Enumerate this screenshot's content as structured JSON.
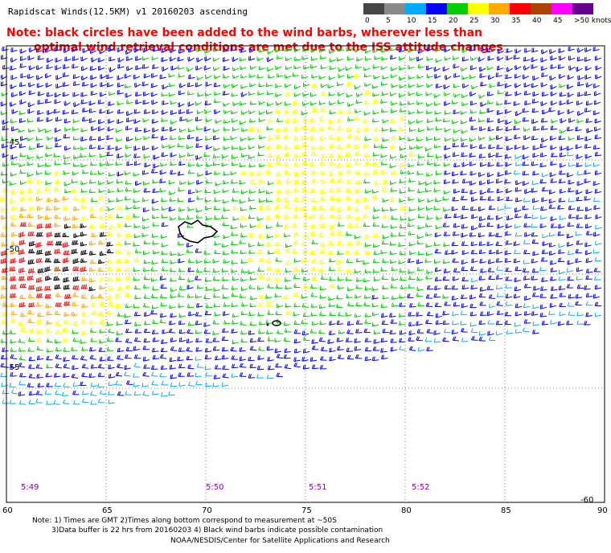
{
  "title": "Rapidscat Winds(12.5KM) v1 20160203 ascending",
  "note": {
    "line1": "Note: black circles have been added to the wind barbs, wherever less than",
    "line2": "optimal wind retrieval conditions are met due to the ISS attitude changes"
  },
  "legend": {
    "items": [
      {
        "label": "0",
        "color": "#454545"
      },
      {
        "label": "5",
        "color": "#8a8a8a"
      },
      {
        "label": "10",
        "color": "#00aaff"
      },
      {
        "label": "15",
        "color": "#0000ff"
      },
      {
        "label": "20",
        "color": "#00cc00"
      },
      {
        "label": "25",
        "color": "#ffff00"
      },
      {
        "label": "30",
        "color": "#ffaa00"
      },
      {
        "label": "35",
        "color": "#ff0000"
      },
      {
        "label": "40",
        "color": "#aa4400"
      },
      {
        "label": "45",
        "color": "#ff00ff"
      },
      {
        "label": ">50 knots",
        "color": "#6a0090"
      }
    ]
  },
  "axes": {
    "lon_labels": [
      "60",
      "65",
      "70",
      "75",
      "80",
      "85",
      "90"
    ],
    "lat_labels": [
      "-45",
      "-50",
      "-55",
      "-60"
    ]
  },
  "time_labels": [
    "5:49",
    "5:50",
    "5:51",
    "5:52"
  ],
  "footer": {
    "line1": "Note: 1) Times are GMT 2)Times along bottom correspond to measurement at ~50S",
    "line2": "3)Data buffer is 22 hrs from 20160203 4) Black wind barbs indicate possible contamination",
    "line3": "NOAA/NESDIS/Center for Satellite Applications and Research"
  }
}
